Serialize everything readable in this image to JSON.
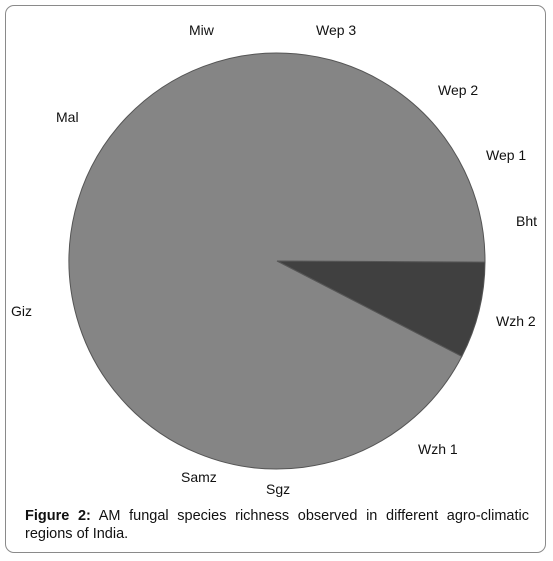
{
  "figure": {
    "caption_label": "Figure 2:",
    "caption_text": " AM fungal species richness observed in different agro-climatic regions of India."
  },
  "chart_data": {
    "type": "pie",
    "categories": [
      "Bht",
      "Wzh 2",
      "Wzh 1",
      "Sgz",
      "Samz",
      "Giz",
      "Mal",
      "Miw",
      "Wep 3",
      "Wep 2",
      "Wep 1"
    ],
    "values": [
      0,
      7.5,
      92.5,
      0,
      0,
      0,
      0,
      0,
      0,
      0,
      0
    ],
    "title": "",
    "legend": "none",
    "colors": {
      "main_slice": "#858585",
      "minor_slice": "#404040",
      "stroke": "#555555"
    }
  }
}
